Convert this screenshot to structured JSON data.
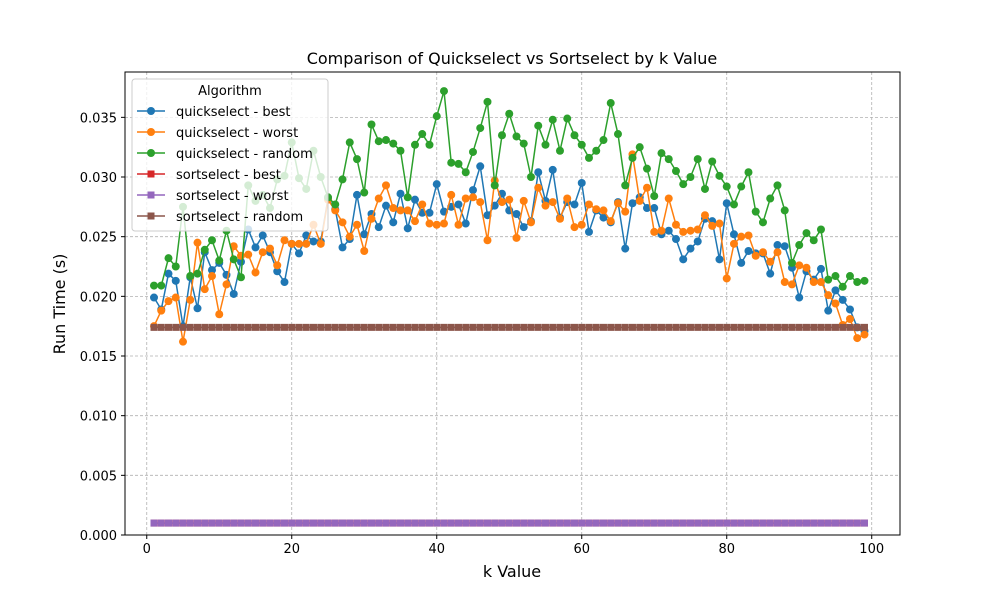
{
  "chart_data": {
    "type": "line",
    "title": "Comparison of Quickselect vs Sortselect by k Value",
    "xlabel": "k Value",
    "ylabel": "Run Time (s)",
    "xlim": [
      -3,
      103.9
    ],
    "ylim": [
      0,
      0.0388
    ],
    "xticks": [
      0,
      20,
      40,
      60,
      80,
      100
    ],
    "yticks": [
      0.0,
      0.005,
      0.01,
      0.015,
      0.02,
      0.025,
      0.03,
      0.035
    ],
    "ytick_format_decimals": 3,
    "grid": true,
    "legend": {
      "title": "Algorithm",
      "placement": "top-left"
    },
    "x": [
      1,
      2,
      3,
      4,
      5,
      6,
      7,
      8,
      9,
      10,
      11,
      12,
      13,
      14,
      15,
      16,
      17,
      18,
      19,
      20,
      21,
      22,
      23,
      24,
      25,
      26,
      27,
      28,
      29,
      30,
      31,
      32,
      33,
      34,
      35,
      36,
      37,
      38,
      39,
      40,
      41,
      42,
      43,
      44,
      45,
      46,
      47,
      48,
      49,
      50,
      51,
      52,
      53,
      54,
      55,
      56,
      57,
      58,
      59,
      60,
      61,
      62,
      63,
      64,
      65,
      66,
      67,
      68,
      69,
      70,
      71,
      72,
      73,
      74,
      75,
      76,
      77,
      78,
      79,
      80,
      81,
      82,
      83,
      84,
      85,
      86,
      87,
      88,
      89,
      90,
      91,
      92,
      93,
      94,
      95,
      96,
      97,
      98,
      99
    ],
    "series": [
      {
        "name": "quickselect - best",
        "color": "#1f77b4",
        "marker": "circle",
        "values": [
          0.0199,
          0.0189,
          0.0219,
          0.0213,
          0.0175,
          0.0216,
          0.019,
          0.0237,
          0.0222,
          0.0228,
          0.0218,
          0.0202,
          0.0229,
          0.0256,
          0.0241,
          0.0251,
          0.0237,
          0.0221,
          0.0212,
          0.0244,
          0.0236,
          0.0251,
          0.0246,
          0.0246,
          0.0282,
          0.0273,
          0.0241,
          0.0248,
          0.0285,
          0.0252,
          0.0269,
          0.0258,
          0.0276,
          0.0262,
          0.0286,
          0.0257,
          0.0281,
          0.027,
          0.027,
          0.0294,
          0.0271,
          0.0275,
          0.0277,
          0.0261,
          0.0289,
          0.0309,
          0.0268,
          0.0276,
          0.0286,
          0.0272,
          0.0269,
          0.0258,
          0.0263,
          0.0304,
          0.028,
          0.0306,
          0.0266,
          0.0279,
          0.0277,
          0.0295,
          0.0254,
          0.0272,
          0.0266,
          0.0262,
          0.0279,
          0.024,
          0.0278,
          0.0283,
          0.0274,
          0.0274,
          0.0252,
          0.0255,
          0.0248,
          0.0231,
          0.024,
          0.0246,
          0.0265,
          0.0263,
          0.0231,
          0.0278,
          0.0252,
          0.0228,
          0.0238,
          0.0236,
          0.0236,
          0.0219,
          0.0243,
          0.0242,
          0.0224,
          0.0199,
          0.0221,
          0.0214,
          0.0223,
          0.0188,
          0.0205,
          0.0197,
          0.0189,
          0.0174,
          0.0171
        ]
      },
      {
        "name": "quickselect - worst",
        "color": "#ff7f0e",
        "marker": "circle",
        "values": [
          0.0175,
          0.0188,
          0.0196,
          0.0199,
          0.0162,
          0.0197,
          0.0245,
          0.0206,
          0.0217,
          0.0185,
          0.021,
          0.0242,
          0.0234,
          0.0235,
          0.022,
          0.0237,
          0.024,
          0.0226,
          0.0247,
          0.0244,
          0.0244,
          0.0244,
          0.026,
          0.0244,
          0.0281,
          0.0272,
          0.0262,
          0.025,
          0.026,
          0.0238,
          0.0265,
          0.0282,
          0.0293,
          0.0274,
          0.0272,
          0.0272,
          0.0263,
          0.0277,
          0.0261,
          0.026,
          0.0261,
          0.0285,
          0.026,
          0.0282,
          0.0283,
          0.0279,
          0.0247,
          0.0297,
          0.0279,
          0.0281,
          0.0249,
          0.028,
          0.0262,
          0.0291,
          0.0276,
          0.0279,
          0.0265,
          0.0282,
          0.0258,
          0.026,
          0.0277,
          0.0273,
          0.0272,
          0.0263,
          0.0278,
          0.0271,
          0.0319,
          0.028,
          0.0291,
          0.0254,
          0.0255,
          0.0282,
          0.026,
          0.0254,
          0.0255,
          0.0256,
          0.0268,
          0.0259,
          0.0261,
          0.0215,
          0.0244,
          0.025,
          0.0251,
          0.0234,
          0.0237,
          0.0229,
          0.0237,
          0.0212,
          0.021,
          0.0226,
          0.0224,
          0.0212,
          0.0212,
          0.0201,
          0.0194,
          0.0176,
          0.0181,
          0.0165,
          0.0168
        ]
      },
      {
        "name": "quickselect - random",
        "color": "#2ca02c",
        "marker": "circle",
        "values": [
          0.0209,
          0.0209,
          0.0232,
          0.0225,
          0.0275,
          0.0217,
          0.0219,
          0.0239,
          0.0247,
          0.023,
          0.0255,
          0.0231,
          0.0216,
          0.0293,
          0.028,
          0.0285,
          0.0274,
          0.0298,
          0.0301,
          0.0329,
          0.0299,
          0.029,
          0.0322,
          0.03,
          0.0283,
          0.0277,
          0.0298,
          0.0329,
          0.0315,
          0.0287,
          0.0344,
          0.033,
          0.0331,
          0.0328,
          0.0322,
          0.0283,
          0.0327,
          0.0336,
          0.0327,
          0.0351,
          0.0372,
          0.0312,
          0.0311,
          0.0304,
          0.0321,
          0.0341,
          0.0363,
          0.0293,
          0.0335,
          0.0353,
          0.0334,
          0.0328,
          0.03,
          0.0343,
          0.0327,
          0.0348,
          0.0322,
          0.0349,
          0.0335,
          0.0327,
          0.0316,
          0.0322,
          0.0331,
          0.0362,
          0.0336,
          0.0293,
          0.0316,
          0.0325,
          0.0307,
          0.0284,
          0.032,
          0.0315,
          0.0305,
          0.0294,
          0.03,
          0.0315,
          0.029,
          0.0313,
          0.0301,
          0.0292,
          0.0277,
          0.0292,
          0.0304,
          0.0271,
          0.0262,
          0.0282,
          0.0293,
          0.0272,
          0.0228,
          0.0243,
          0.0253,
          0.0247,
          0.0256,
          0.0214,
          0.0217,
          0.0208,
          0.0217,
          0.0212,
          0.0213
        ]
      },
      {
        "name": "sortselect - best",
        "color": "#d62728",
        "marker": "square",
        "values": [
          0.001,
          0.001,
          0.001,
          0.001,
          0.001,
          0.001,
          0.001,
          0.001,
          0.001,
          0.001,
          0.001,
          0.001,
          0.001,
          0.001,
          0.001,
          0.001,
          0.001,
          0.001,
          0.001,
          0.001,
          0.001,
          0.001,
          0.001,
          0.001,
          0.001,
          0.001,
          0.001,
          0.001,
          0.001,
          0.001,
          0.001,
          0.001,
          0.001,
          0.001,
          0.001,
          0.001,
          0.001,
          0.001,
          0.001,
          0.001,
          0.001,
          0.001,
          0.001,
          0.001,
          0.001,
          0.001,
          0.001,
          0.001,
          0.001,
          0.001,
          0.001,
          0.001,
          0.001,
          0.001,
          0.001,
          0.001,
          0.001,
          0.001,
          0.001,
          0.001,
          0.001,
          0.001,
          0.001,
          0.001,
          0.001,
          0.001,
          0.001,
          0.001,
          0.001,
          0.001,
          0.001,
          0.001,
          0.001,
          0.001,
          0.001,
          0.001,
          0.001,
          0.001,
          0.001,
          0.001,
          0.001,
          0.001,
          0.001,
          0.001,
          0.001,
          0.001,
          0.001,
          0.001,
          0.001,
          0.001,
          0.001,
          0.001,
          0.001,
          0.001,
          0.001,
          0.001,
          0.001,
          0.001,
          0.001
        ]
      },
      {
        "name": "sortselect - worst",
        "color": "#9467bd",
        "marker": "square",
        "values": [
          0.001,
          0.001,
          0.001,
          0.001,
          0.001,
          0.001,
          0.001,
          0.001,
          0.001,
          0.001,
          0.001,
          0.001,
          0.001,
          0.001,
          0.001,
          0.001,
          0.001,
          0.001,
          0.001,
          0.001,
          0.001,
          0.001,
          0.001,
          0.001,
          0.001,
          0.001,
          0.001,
          0.001,
          0.001,
          0.001,
          0.001,
          0.001,
          0.001,
          0.001,
          0.001,
          0.001,
          0.001,
          0.001,
          0.001,
          0.001,
          0.001,
          0.001,
          0.001,
          0.001,
          0.001,
          0.001,
          0.001,
          0.001,
          0.001,
          0.001,
          0.001,
          0.001,
          0.001,
          0.001,
          0.001,
          0.001,
          0.001,
          0.001,
          0.001,
          0.001,
          0.001,
          0.001,
          0.001,
          0.001,
          0.001,
          0.001,
          0.001,
          0.001,
          0.001,
          0.001,
          0.001,
          0.001,
          0.001,
          0.001,
          0.001,
          0.001,
          0.001,
          0.001,
          0.001,
          0.001,
          0.001,
          0.001,
          0.001,
          0.001,
          0.001,
          0.001,
          0.001,
          0.001,
          0.001,
          0.001,
          0.001,
          0.001,
          0.001,
          0.001,
          0.001,
          0.001,
          0.001,
          0.001,
          0.001
        ]
      },
      {
        "name": "sortselect - random",
        "color": "#8c564b",
        "marker": "square",
        "values": [
          0.0174,
          0.0174,
          0.0174,
          0.0174,
          0.0174,
          0.0174,
          0.0174,
          0.0174,
          0.0174,
          0.0174,
          0.0174,
          0.0174,
          0.0174,
          0.0174,
          0.0174,
          0.0174,
          0.0174,
          0.0174,
          0.0174,
          0.0174,
          0.0174,
          0.0174,
          0.0174,
          0.0174,
          0.0174,
          0.0174,
          0.0174,
          0.0174,
          0.0174,
          0.0174,
          0.0174,
          0.0174,
          0.0174,
          0.0174,
          0.0174,
          0.0174,
          0.0174,
          0.0174,
          0.0174,
          0.0174,
          0.0174,
          0.0174,
          0.0174,
          0.0174,
          0.0174,
          0.0174,
          0.0174,
          0.0174,
          0.0174,
          0.0174,
          0.0174,
          0.0174,
          0.0174,
          0.0174,
          0.0174,
          0.0174,
          0.0174,
          0.0174,
          0.0174,
          0.0174,
          0.0174,
          0.0174,
          0.0174,
          0.0174,
          0.0174,
          0.0174,
          0.0174,
          0.0174,
          0.0174,
          0.0174,
          0.0174,
          0.0174,
          0.0174,
          0.0174,
          0.0174,
          0.0174,
          0.0174,
          0.0174,
          0.0174,
          0.0174,
          0.0174,
          0.0174,
          0.0174,
          0.0174,
          0.0174,
          0.0174,
          0.0174,
          0.0174,
          0.0174,
          0.0174,
          0.0174,
          0.0174,
          0.0174,
          0.0174,
          0.0174,
          0.0174,
          0.0174,
          0.0174,
          0.0174
        ]
      }
    ]
  }
}
